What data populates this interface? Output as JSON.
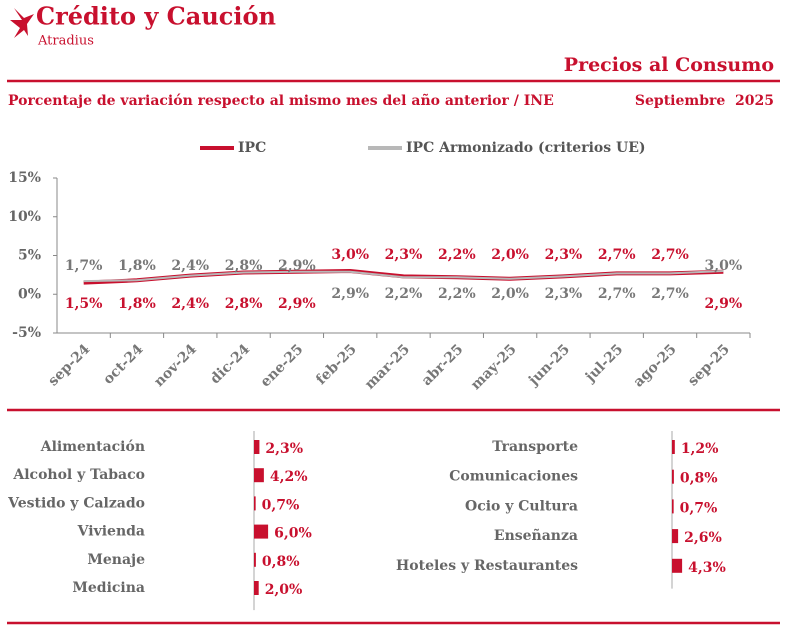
{
  "header": {
    "brand": "Crédito y Caución",
    "sub_brand": "Atradius",
    "title": "Precios al Consumo",
    "subtitle": "Porcentaje de variación respecto al mismo mes del año anterior / INE",
    "date": "Septiembre  2025"
  },
  "chart_data": [
    {
      "type": "line",
      "categories": [
        "sep-24",
        "oct-24",
        "nov-24",
        "dic-24",
        "ene-25",
        "feb-25",
        "mar-25",
        "abr-25",
        "may-25",
        "jun-25",
        "jul-25",
        "ago-25",
        "sep-25"
      ],
      "series": [
        {
          "name": "IPC",
          "color": "#c8102e",
          "values": [
            1.5,
            1.8,
            2.4,
            2.8,
            2.9,
            3.0,
            2.3,
            2.2,
            2.0,
            2.3,
            2.7,
            2.7,
            2.9
          ],
          "value_labels": [
            "1,5%",
            "1,8%",
            "2,4%",
            "2,8%",
            "2,9%",
            "3,0%",
            "2,3%",
            "2,2%",
            "2,0%",
            "2,3%",
            "2,7%",
            "2,7%",
            "2,9%"
          ]
        },
        {
          "name": "IPC Armonizado (criterios UE)",
          "color": "#b8b8b8",
          "values": [
            1.7,
            1.8,
            2.4,
            2.8,
            2.9,
            2.9,
            2.2,
            2.2,
            2.0,
            2.3,
            2.7,
            2.7,
            3.0
          ],
          "value_labels": [
            "1,7%",
            "1,8%",
            "2,4%",
            "2,8%",
            "2,9%",
            "2,9%",
            "2,2%",
            "2,2%",
            "2,0%",
            "2,3%",
            "2,7%",
            "2,7%",
            "3,0%"
          ]
        }
      ],
      "ylim": [
        -5,
        15
      ],
      "yticks": [
        {
          "value": -5,
          "label": "-5%"
        },
        {
          "value": 0,
          "label": "0%"
        },
        {
          "value": 5,
          "label": "5%"
        },
        {
          "value": 10,
          "label": "10%"
        },
        {
          "value": 15,
          "label": "15%"
        }
      ],
      "grid": false
    },
    {
      "type": "bar",
      "orientation": "horizontal",
      "color": "#c8102e",
      "categories": [
        "Alimentación",
        "Alcohol y Tabaco",
        "Vestido y Calzado",
        "Vivienda",
        "Menaje",
        "Medicina"
      ],
      "values": [
        2.3,
        4.2,
        0.7,
        6.0,
        0.8,
        2.0
      ],
      "value_labels": [
        "2,3%",
        "4,2%",
        "0,7%",
        "6,0%",
        "0,8%",
        "2,0%"
      ]
    },
    {
      "type": "bar",
      "orientation": "horizontal",
      "color": "#c8102e",
      "categories": [
        "Transporte",
        "Comunicaciones",
        "Ocio y Cultura",
        "Enseñanza",
        "Hoteles y Restaurantes"
      ],
      "values": [
        1.2,
        0.8,
        0.7,
        2.6,
        4.3
      ],
      "value_labels": [
        "1,2%",
        "0,8%",
        "0,7%",
        "2,6%",
        "4,3%"
      ]
    }
  ]
}
